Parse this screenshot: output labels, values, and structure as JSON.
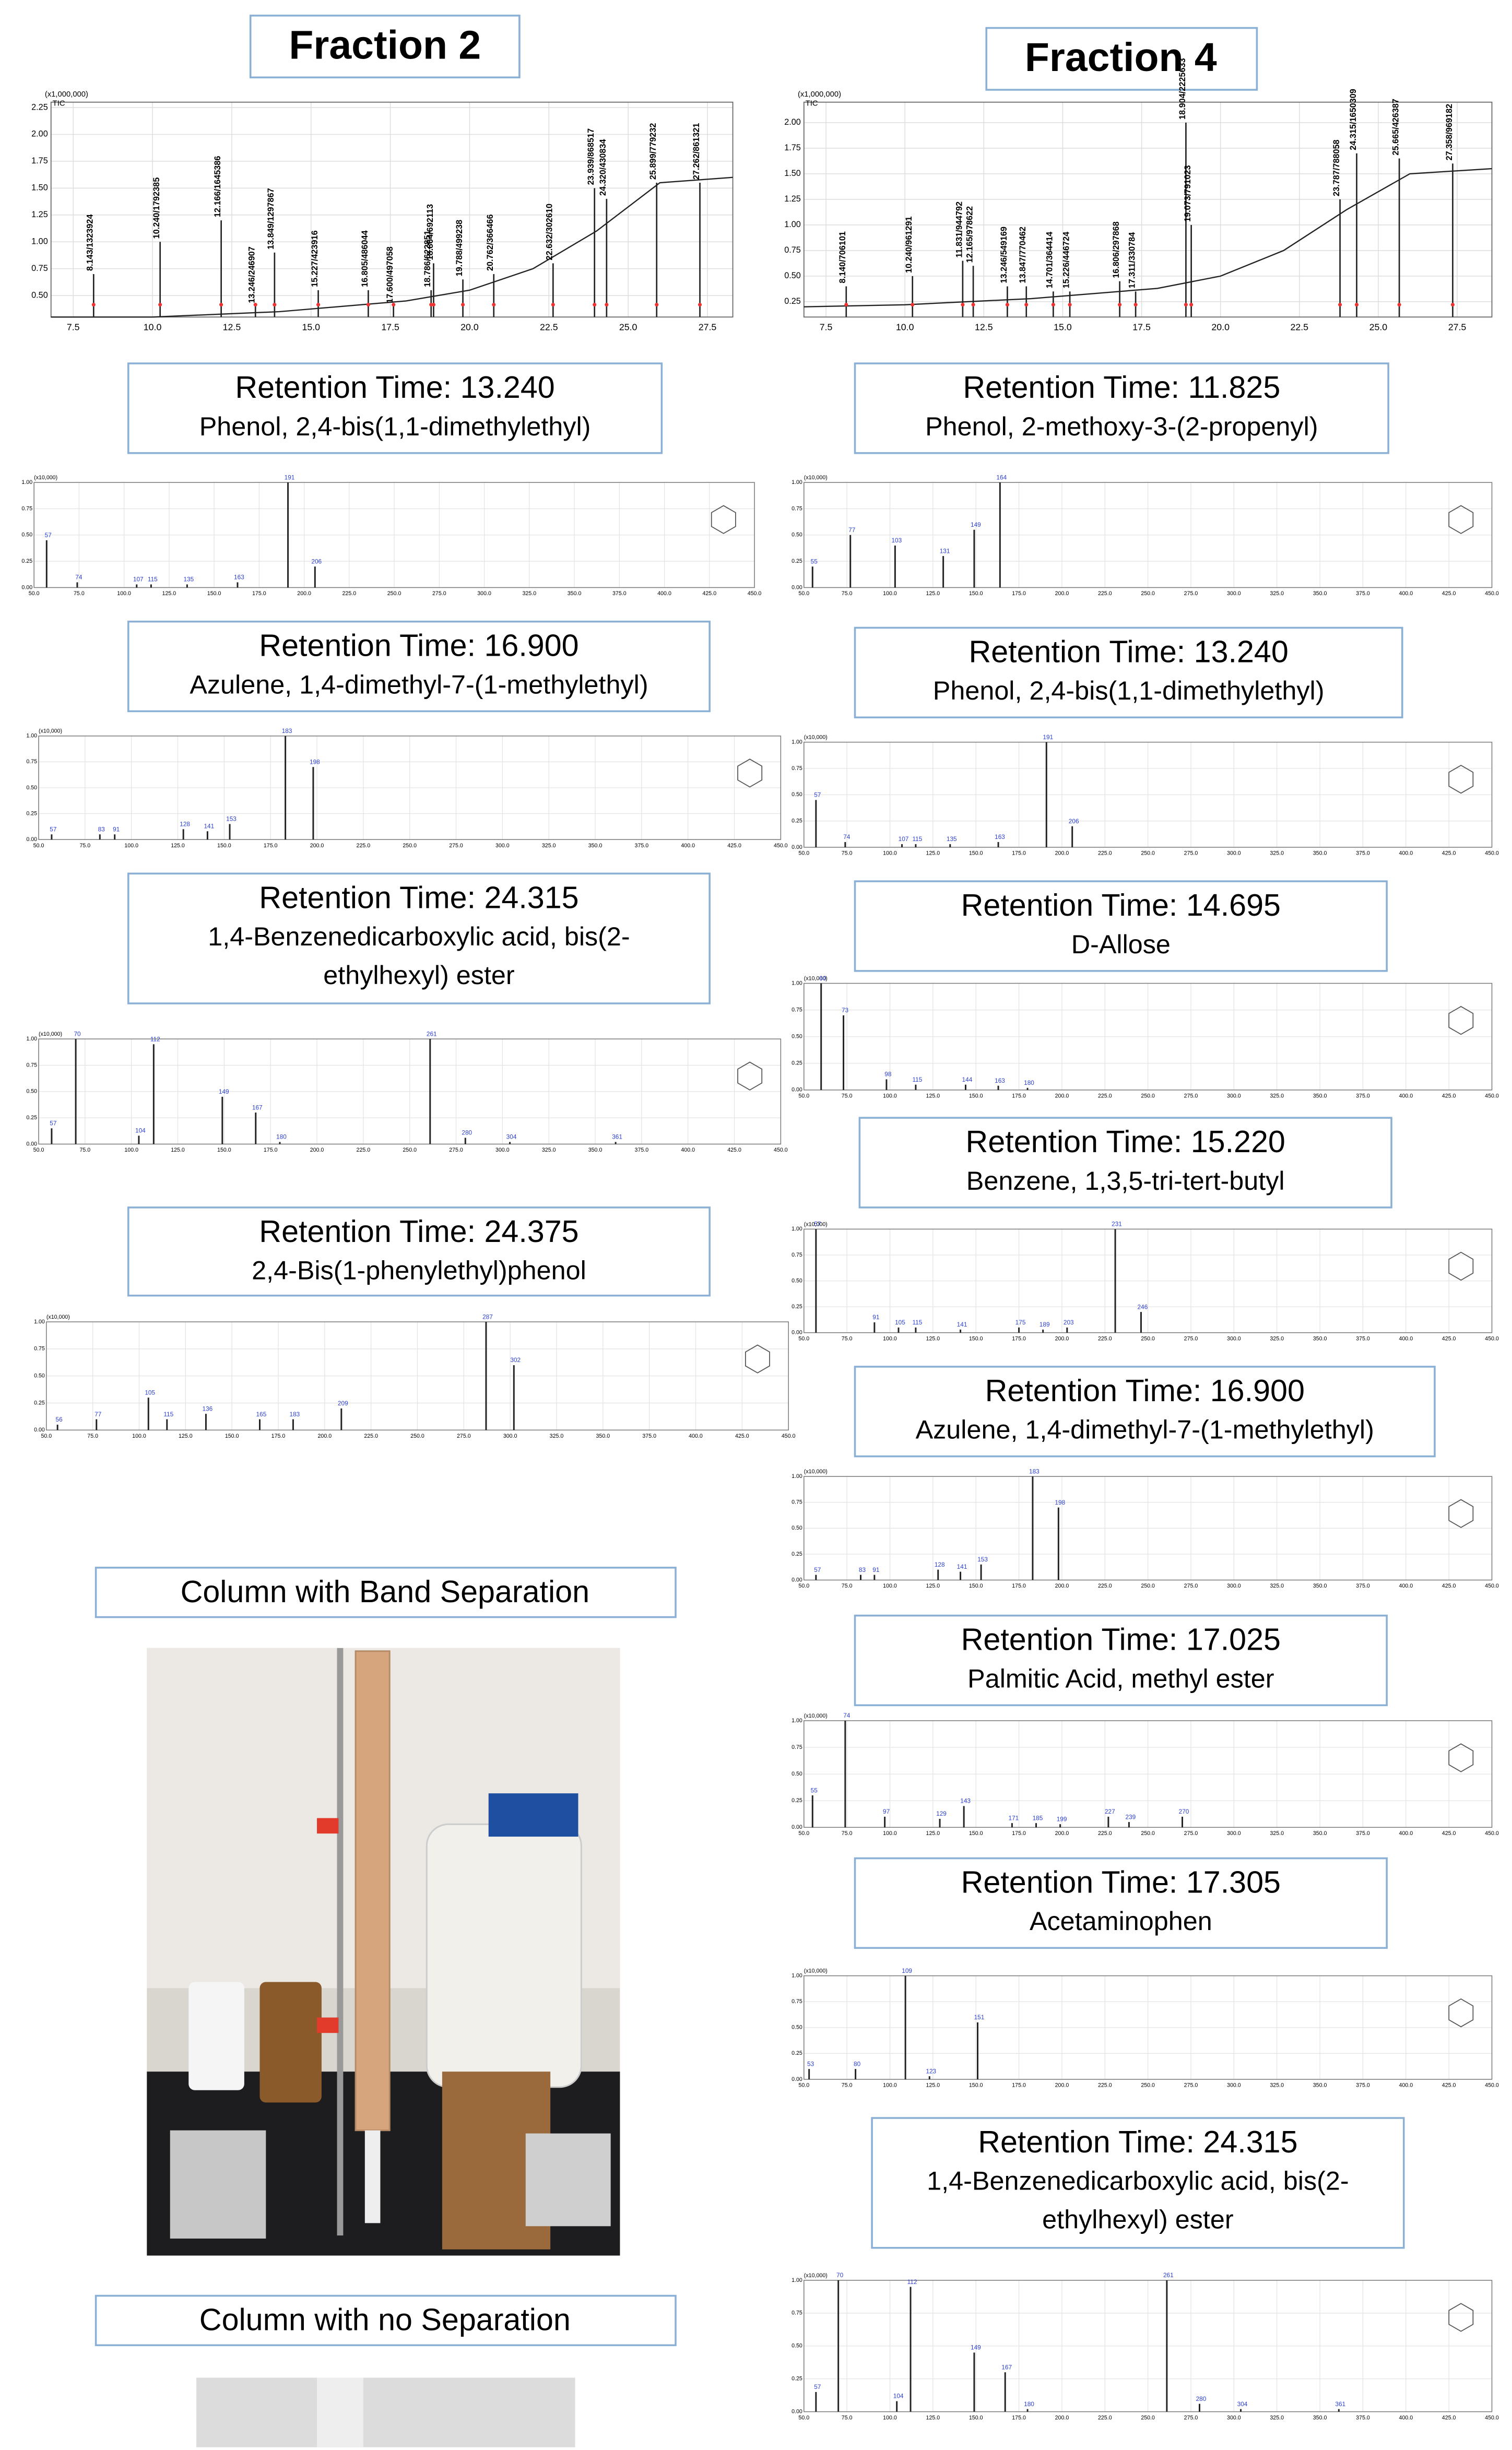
{
  "fraction2": {
    "title": "Fraction 2",
    "tic": {
      "scale_label": "(x1,000,000)",
      "axis_label": "TIC",
      "xlim": [
        6.8,
        28.3
      ],
      "ylim": [
        0.3,
        2.3
      ],
      "xticks": [
        7.5,
        {
          "value": 10,
          "label": "10.0"
        },
        12.5,
        {
          "value": 15,
          "label": "15.0"
        },
        17.5,
        {
          "value": 20,
          "label": "20.0"
        },
        22.5,
        {
          "value": 25,
          "label": "25.0"
        },
        27.5
      ],
      "yticks": [
        {
          "value": 0.5,
          "label": "0.50"
        },
        {
          "value": 0.75,
          "label": "0.75"
        },
        {
          "value": 1,
          "label": "1.00"
        },
        {
          "value": 1.25,
          "label": "1.25"
        },
        {
          "value": 1.5,
          "label": "1.50"
        },
        {
          "value": 1.75,
          "label": "1.75"
        },
        {
          "value": 2,
          "label": "2.00"
        },
        {
          "value": 2.25,
          "label": "2.25"
        }
      ],
      "baseline_x": [
        6.8,
        10,
        14,
        18,
        20,
        22,
        24,
        26,
        28.3
      ],
      "baseline": [
        0.3,
        0.3,
        0.35,
        0.45,
        0.55,
        0.75,
        1.1,
        1.55,
        1.6
      ],
      "peaks_x": [
        8.143,
        10.24,
        12.166,
        13.246,
        13.849,
        15.227,
        16.805,
        17.6,
        18.786,
        18.864,
        19.788,
        20.762,
        22.632,
        23.939,
        24.32,
        25.899,
        27.262
      ],
      "peaks": [
        0.7,
        1.0,
        1.2,
        0.4,
        0.9,
        0.55,
        0.55,
        0.4,
        0.55,
        0.8,
        0.65,
        0.7,
        0.8,
        1.5,
        1.4,
        1.55,
        1.55
      ],
      "peak_labels": [
        "8.143/1323924",
        "10.240/1792385",
        "12.166/1645386",
        "13.246/246907",
        "13.849/1297867",
        "15.227/423916",
        "16.805/486044",
        "17.600/497058",
        "18.786/622851",
        "18.864/692113",
        "19.788/499238",
        "20.762/366466",
        "22.632/302610",
        "23.939/868517",
        "24.320/430834",
        "25.899/779232",
        "27.262/861321"
      ]
    },
    "compounds": [
      {
        "retention": "Retention Time: 13.240",
        "name": [
          "Phenol, 2,4-bis(1,1-dimethylethyl)"
        ],
        "spectrum": {
          "x": [
            57,
            74,
            107,
            115,
            135,
            163,
            191,
            206
          ],
          "values": [
            0.45,
            0.05,
            0.03,
            0.03,
            0.03,
            0.05,
            1.0,
            0.2
          ]
        }
      },
      {
        "retention": "Retention Time: 16.900",
        "name": [
          "Azulene, 1,4-dimethyl-7-(1-methylethyl)"
        ],
        "spectrum": {
          "x": [
            57,
            83,
            91,
            128,
            141,
            153,
            183,
            198
          ],
          "values": [
            0.05,
            0.05,
            0.05,
            0.1,
            0.08,
            0.15,
            1.0,
            0.7
          ]
        }
      },
      {
        "retention": "Retention Time: 24.315",
        "name": [
          "1,4-Benzenedicarboxylic acid, bis(2-",
          "ethylhexyl) ester"
        ],
        "spectrum": {
          "x": [
            57,
            70,
            104,
            112,
            149,
            167,
            180,
            261,
            280,
            304,
            361
          ],
          "values": [
            0.15,
            1.0,
            0.08,
            0.95,
            0.45,
            0.3,
            0.02,
            1.0,
            0.06,
            0.02,
            0.02
          ]
        }
      },
      {
        "retention": "Retention Time: 24.375",
        "name": [
          "2,4-Bis(1-phenylethyl)phenol"
        ],
        "spectrum": {
          "x": [
            56,
            77,
            105,
            115,
            136,
            165,
            183,
            209,
            287,
            302
          ],
          "values": [
            0.05,
            0.1,
            0.3,
            0.1,
            0.15,
            0.1,
            0.1,
            0.2,
            1.0,
            0.6
          ]
        }
      }
    ]
  },
  "fraction4": {
    "title": "Fraction 4",
    "tic": {
      "scale_label": "(x1,000,000)",
      "axis_label": "TIC",
      "xlim": [
        6.8,
        28.6
      ],
      "ylim": [
        0.1,
        2.2
      ],
      "xticks": [
        7.5,
        {
          "value": 10,
          "label": "10.0"
        },
        12.5,
        {
          "value": 15,
          "label": "15.0"
        },
        17.5,
        {
          "value": 20,
          "label": "20.0"
        },
        22.5,
        {
          "value": 25,
          "label": "25.0"
        },
        27.5
      ],
      "yticks": [
        {
          "value": 0.25,
          "label": "0.25"
        },
        {
          "value": 0.5,
          "label": "0.50"
        },
        {
          "value": 0.75,
          "label": "0.75"
        },
        {
          "value": 1,
          "label": "1.00"
        },
        {
          "value": 1.25,
          "label": "1.25"
        },
        {
          "value": 1.5,
          "label": "1.50"
        },
        {
          "value": 1.75,
          "label": "1.75"
        },
        {
          "value": 2,
          "label": "2.00"
        }
      ],
      "baseline_x": [
        6.8,
        10,
        14,
        18,
        20,
        22,
        24,
        26,
        28.6
      ],
      "baseline": [
        0.2,
        0.22,
        0.28,
        0.38,
        0.5,
        0.75,
        1.15,
        1.5,
        1.55
      ],
      "peaks_x": [
        8.14,
        10.24,
        11.831,
        12.165,
        13.246,
        13.847,
        14.701,
        15.226,
        16.806,
        17.311,
        18.904,
        19.073,
        23.787,
        24.315,
        25.665,
        27.358
      ],
      "peaks": [
        0.4,
        0.5,
        0.65,
        0.6,
        0.4,
        0.4,
        0.35,
        0.35,
        0.45,
        0.35,
        2.0,
        1.0,
        1.25,
        1.7,
        1.65,
        1.6
      ],
      "peak_labels": [
        "8.140/706101",
        "10.240/961291",
        "11.831/944792",
        "12.165/978622",
        "13.246/549169",
        "13.847/770462",
        "14.701/364414",
        "15.226/446724",
        "16.806/297868",
        "17.311/330784",
        "18.904/2225633",
        "19.073/791023",
        "23.787/788058",
        "24.315/1650309",
        "25.665/426387",
        "27.358/969182"
      ]
    },
    "compounds": [
      {
        "retention": "Retention Time: 11.825",
        "name": [
          "Phenol, 2-methoxy-3-(2-propenyl)"
        ],
        "spectrum": {
          "x": [
            55,
            77,
            103,
            131,
            149,
            164
          ],
          "values": [
            0.2,
            0.5,
            0.4,
            0.3,
            0.55,
            1.0
          ]
        }
      },
      {
        "retention": "Retention Time: 13.240",
        "name": [
          "Phenol, 2,4-bis(1,1-dimethylethyl)"
        ],
        "spectrum": {
          "x": [
            57,
            74,
            107,
            115,
            135,
            163,
            191,
            206
          ],
          "values": [
            0.45,
            0.05,
            0.03,
            0.03,
            0.03,
            0.05,
            1.0,
            0.2
          ]
        }
      },
      {
        "retention": "Retention Time: 14.695",
        "name": [
          "D-Allose"
        ],
        "spectrum": {
          "x": [
            60,
            73,
            98,
            115,
            144,
            163,
            180
          ],
          "values": [
            1.0,
            0.7,
            0.1,
            0.05,
            0.05,
            0.04,
            0.02
          ]
        }
      },
      {
        "retention": "Retention Time: 15.220",
        "name": [
          "Benzene, 1,3,5-tri-tert-butyl"
        ],
        "spectrum": {
          "x": [
            57,
            91,
            105,
            115,
            141,
            175,
            189,
            203,
            231,
            246
          ],
          "values": [
            1.0,
            0.1,
            0.05,
            0.05,
            0.03,
            0.05,
            0.03,
            0.05,
            1.0,
            0.2
          ]
        }
      },
      {
        "retention": "Retention Time: 16.900",
        "name": [
          "Azulene, 1,4-dimethyl-7-(1-methylethyl)"
        ],
        "spectrum": {
          "x": [
            57,
            83,
            91,
            128,
            141,
            153,
            183,
            198
          ],
          "values": [
            0.05,
            0.05,
            0.05,
            0.1,
            0.08,
            0.15,
            1.0,
            0.7
          ]
        }
      },
      {
        "retention": "Retention Time: 17.025",
        "name": [
          "Palmitic Acid, methyl ester"
        ],
        "spectrum": {
          "x": [
            55,
            74,
            97,
            129,
            143,
            171,
            185,
            199,
            227,
            239,
            270
          ],
          "values": [
            0.3,
            1.0,
            0.1,
            0.08,
            0.2,
            0.04,
            0.04,
            0.03,
            0.1,
            0.05,
            0.1
          ]
        }
      },
      {
        "retention": "Retention Time: 17.305",
        "name": [
          "Acetaminophen"
        ],
        "spectrum": {
          "x": [
            53,
            80,
            109,
            123,
            151
          ],
          "values": [
            0.1,
            0.1,
            1.0,
            0.03,
            0.55
          ]
        }
      },
      {
        "retention": "Retention Time: 24.315",
        "name": [
          "1,4-Benzenedicarboxylic acid, bis(2-",
          "ethylhexyl) ester"
        ],
        "spectrum": {
          "x": [
            57,
            70,
            104,
            112,
            149,
            167,
            180,
            261,
            280,
            304,
            361
          ],
          "values": [
            0.15,
            1.0,
            0.08,
            0.95,
            0.45,
            0.3,
            0.02,
            1.0,
            0.06,
            0.02,
            0.02
          ]
        }
      }
    ]
  },
  "ms_axis": {
    "scale_label": "(x10,000)",
    "xlim": [
      50,
      450
    ],
    "ylim": [
      0,
      1
    ],
    "xticks": [
      {
        "value": 50,
        "label": "50.0"
      },
      {
        "value": 75,
        "label": "75.0"
      },
      {
        "value": 100,
        "label": "100.0"
      },
      {
        "value": 125,
        "label": "125.0"
      },
      {
        "value": 150,
        "label": "150.0"
      },
      {
        "value": 175,
        "label": "175.0"
      },
      {
        "value": 200,
        "label": "200.0"
      },
      {
        "value": 225,
        "label": "225.0"
      },
      {
        "value": 250,
        "label": "250.0"
      },
      {
        "value": 275,
        "label": "275.0"
      },
      {
        "value": 300,
        "label": "300.0"
      },
      {
        "value": 325,
        "label": "325.0"
      },
      {
        "value": 350,
        "label": "350.0"
      },
      {
        "value": 375,
        "label": "375.0"
      },
      {
        "value": 400,
        "label": "400.0"
      },
      {
        "value": 425,
        "label": "425.0"
      },
      {
        "value": 450,
        "label": "450.0"
      }
    ],
    "yticks": [
      {
        "value": 0,
        "label": "0.00"
      },
      {
        "value": 0.25,
        "label": "0.25"
      },
      {
        "value": 0.5,
        "label": "0.50"
      },
      {
        "value": 0.75,
        "label": "0.75"
      },
      {
        "value": 1,
        "label": "1.00"
      }
    ]
  },
  "photos": [
    {
      "caption": "Column with Band Separation"
    },
    {
      "caption": "Column with no Separation"
    }
  ]
}
